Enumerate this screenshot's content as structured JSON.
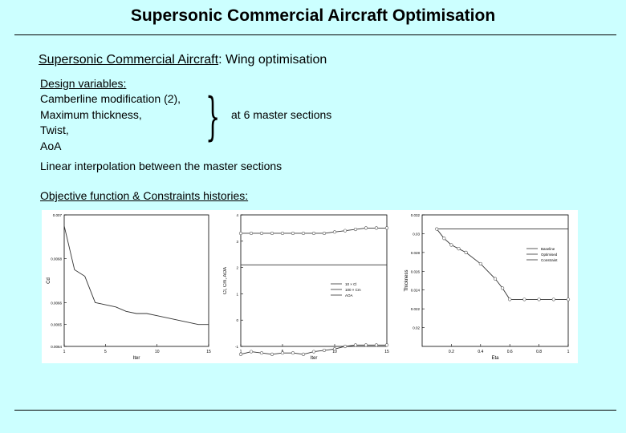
{
  "header": {
    "title": "Supersonic Commercial Aircraft Optimisation"
  },
  "section": {
    "subtitle_link": "Supersonic Commercial Aircraft",
    "subtitle_rest": ": Wing optimisation"
  },
  "design": {
    "heading": "Design variables:",
    "items": [
      "Camberline modification (2),",
      "Maximum thickness,",
      "Twist,",
      "AoA"
    ],
    "note": "at 6 master sections"
  },
  "interp_text": "Linear interpolation between the master sections",
  "histories_heading": "Objective function & Constraints histories:",
  "chart_data": [
    {
      "type": "line",
      "xlabel": "Iter",
      "ylabel": "Cd",
      "xlim": [
        1,
        15
      ],
      "ylim": [
        0.0064,
        0.007
      ],
      "x_ticks": [
        "1",
        "5",
        "10",
        "15"
      ],
      "y_ticks": [
        "0.007",
        "0.0068",
        "0.0066",
        "0.0065",
        "0.0064"
      ],
      "series": [
        {
          "x": [
            1,
            2,
            3,
            4,
            5,
            6,
            7,
            8,
            9,
            10,
            11,
            12,
            13,
            14,
            15
          ],
          "values": [
            0.00695,
            0.00675,
            0.00672,
            0.0066,
            0.00659,
            0.00658,
            0.00656,
            0.00655,
            0.00655,
            0.00654,
            0.00653,
            0.00652,
            0.00651,
            0.0065,
            0.0065
          ]
        }
      ]
    },
    {
      "type": "line",
      "xlabel": "Iter",
      "ylabel": "Cl, Cm, AOA",
      "xlim": [
        1,
        15
      ],
      "ylim": [
        -1,
        4
      ],
      "x_ticks": [
        "1",
        "5",
        "10",
        "15"
      ],
      "y_ticks": [
        "4",
        "3",
        "2",
        "1",
        "0",
        "-1"
      ],
      "legend": [
        "10 × Cl",
        "100 × Cm",
        "AOA"
      ],
      "series": [
        {
          "name": "10 × Cl",
          "values": [
            3.3,
            3.3,
            3.3,
            3.3,
            3.3,
            3.3,
            3.3,
            3.3,
            3.3,
            3.35,
            3.4,
            3.45,
            3.5,
            3.5,
            3.5
          ]
        },
        {
          "name": "AOA",
          "values": [
            2.1,
            2.1,
            2.1,
            2.1,
            2.1,
            2.1,
            2.1,
            2.1,
            2.1,
            2.1,
            2.1,
            2.1,
            2.1,
            2.1,
            2.1
          ]
        },
        {
          "name": "100 × Cm",
          "values": [
            -1.3,
            -1.2,
            -1.25,
            -1.3,
            -1.25,
            -1.25,
            -1.3,
            -1.2,
            -1.15,
            -1.1,
            -1.0,
            -0.95,
            -0.95,
            -0.95,
            -0.95
          ]
        }
      ]
    },
    {
      "type": "line",
      "xlabel": "Eta",
      "ylabel": "Thickness",
      "xlim": [
        0,
        1
      ],
      "ylim": [
        0.018,
        0.032
      ],
      "x_ticks": [
        "0.2",
        "0.4",
        "0.6",
        "0.8",
        "1"
      ],
      "y_ticks": [
        "0.032",
        "0.03",
        "0.028",
        "0.026",
        "0.024",
        "0.022",
        "0.02"
      ],
      "legend": [
        "Baseline",
        "Optimised",
        "Constraint"
      ],
      "series": [
        {
          "name": "Baseline",
          "x": [
            0.1,
            1.0
          ],
          "values": [
            0.0305,
            0.0305
          ]
        },
        {
          "name": "Constraint",
          "x": [
            0.1,
            0.15,
            0.2,
            0.25,
            0.3,
            0.4,
            0.5,
            0.55,
            0.6,
            0.7,
            0.8,
            0.9,
            1.0
          ],
          "values": [
            0.0305,
            0.0295,
            0.0288,
            0.0284,
            0.028,
            0.0268,
            0.0252,
            0.0242,
            0.023,
            0.023,
            0.023,
            0.023,
            0.023
          ]
        }
      ]
    }
  ]
}
